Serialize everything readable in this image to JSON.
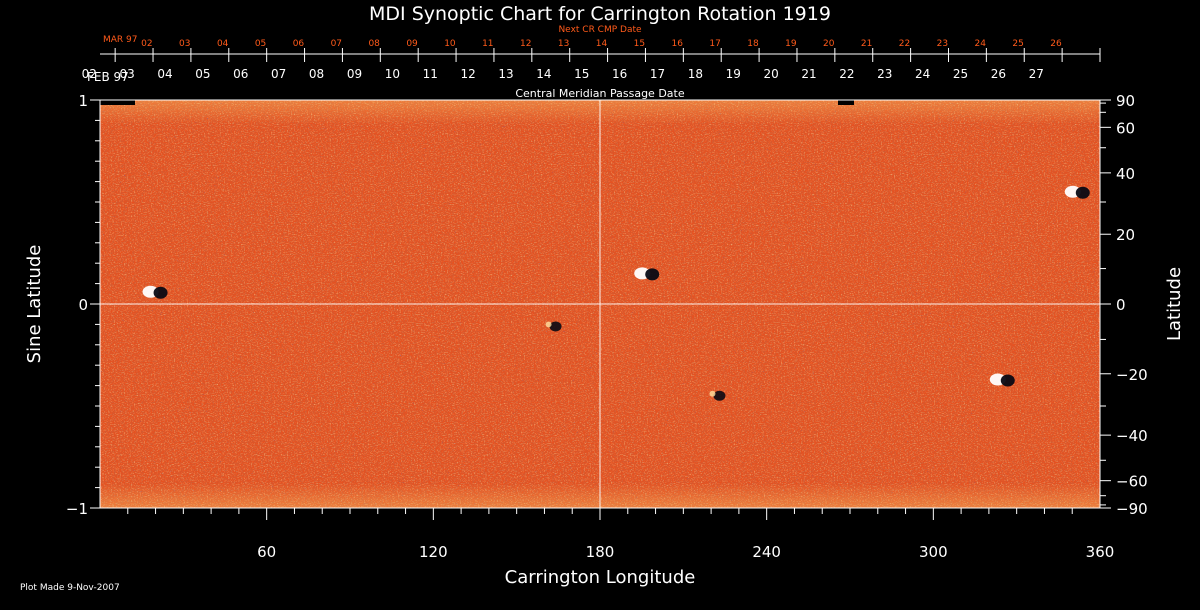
{
  "chart_data": {
    "type": "heatmap",
    "title": "MDI Synoptic Chart for Carrington Rotation 1919",
    "xlabel": "Carrington Longitude",
    "ylabel_left": "Sine Latitude",
    "ylabel_right": "Latitude",
    "xlim": [
      0,
      360
    ],
    "ylim": [
      -1,
      1
    ],
    "x_ticks": [
      60,
      120,
      180,
      240,
      300,
      360
    ],
    "x_minor_step": 10,
    "y_ticks_left": [
      {
        "v": 1,
        "label": "1"
      },
      {
        "v": 0,
        "label": "0"
      },
      {
        "v": -1,
        "label": "−1"
      }
    ],
    "y_minor_step_left": 0.1,
    "y_ticks_right": [
      90,
      60,
      40,
      20,
      0,
      -20,
      -40,
      -60,
      -90
    ],
    "y_minor_right": [
      80,
      70,
      50,
      30,
      10,
      -10,
      -30,
      -50,
      -70,
      -80
    ],
    "gridlines": {
      "x": [
        180
      ],
      "y": [
        0
      ]
    },
    "top_axis_label": "Central Meridian Passage Date",
    "top_axis_month": "FEB 97",
    "top_axis_dates": [
      "27",
      "26",
      "25",
      "24",
      "23",
      "22",
      "21",
      "20",
      "19",
      "18",
      "17",
      "16",
      "15",
      "14",
      "13",
      "12",
      "11",
      "10",
      "09",
      "08",
      "07",
      "06",
      "05",
      "04",
      "03",
      "02"
    ],
    "next_cr_label": "Next CR CMP Date",
    "next_cr_month": "MAR 97",
    "next_cr_dates": [
      "26",
      "25",
      "24",
      "23",
      "22",
      "21",
      "20",
      "19",
      "18",
      "17",
      "16",
      "15",
      "14",
      "13",
      "12",
      "11",
      "10",
      "09",
      "08",
      "07",
      "06",
      "05",
      "04",
      "03",
      "02"
    ],
    "features": [
      {
        "lon": 20,
        "sinlat": 0.06,
        "polarity": "mixed"
      },
      {
        "lon": 197,
        "sinlat": 0.15,
        "polarity": "mixed"
      },
      {
        "lon": 352,
        "sinlat": 0.55,
        "polarity": "mixed"
      },
      {
        "lon": 223,
        "sinlat": -0.45,
        "polarity": "negative"
      },
      {
        "lon": 325,
        "sinlat": -0.37,
        "polarity": "mixed"
      },
      {
        "lon": 164,
        "sinlat": -0.11,
        "polarity": "negative"
      }
    ],
    "colors": {
      "background": "#000000",
      "field_base": "#e8501e",
      "field_light": "#ffb050",
      "field_dark": "#8a1810",
      "negative": "#2a1a55",
      "positive": "#ffffff",
      "accent_text": "#ff5a1a"
    }
  },
  "footer": {
    "plot_made": "Plot Made  9-Nov-2007"
  }
}
